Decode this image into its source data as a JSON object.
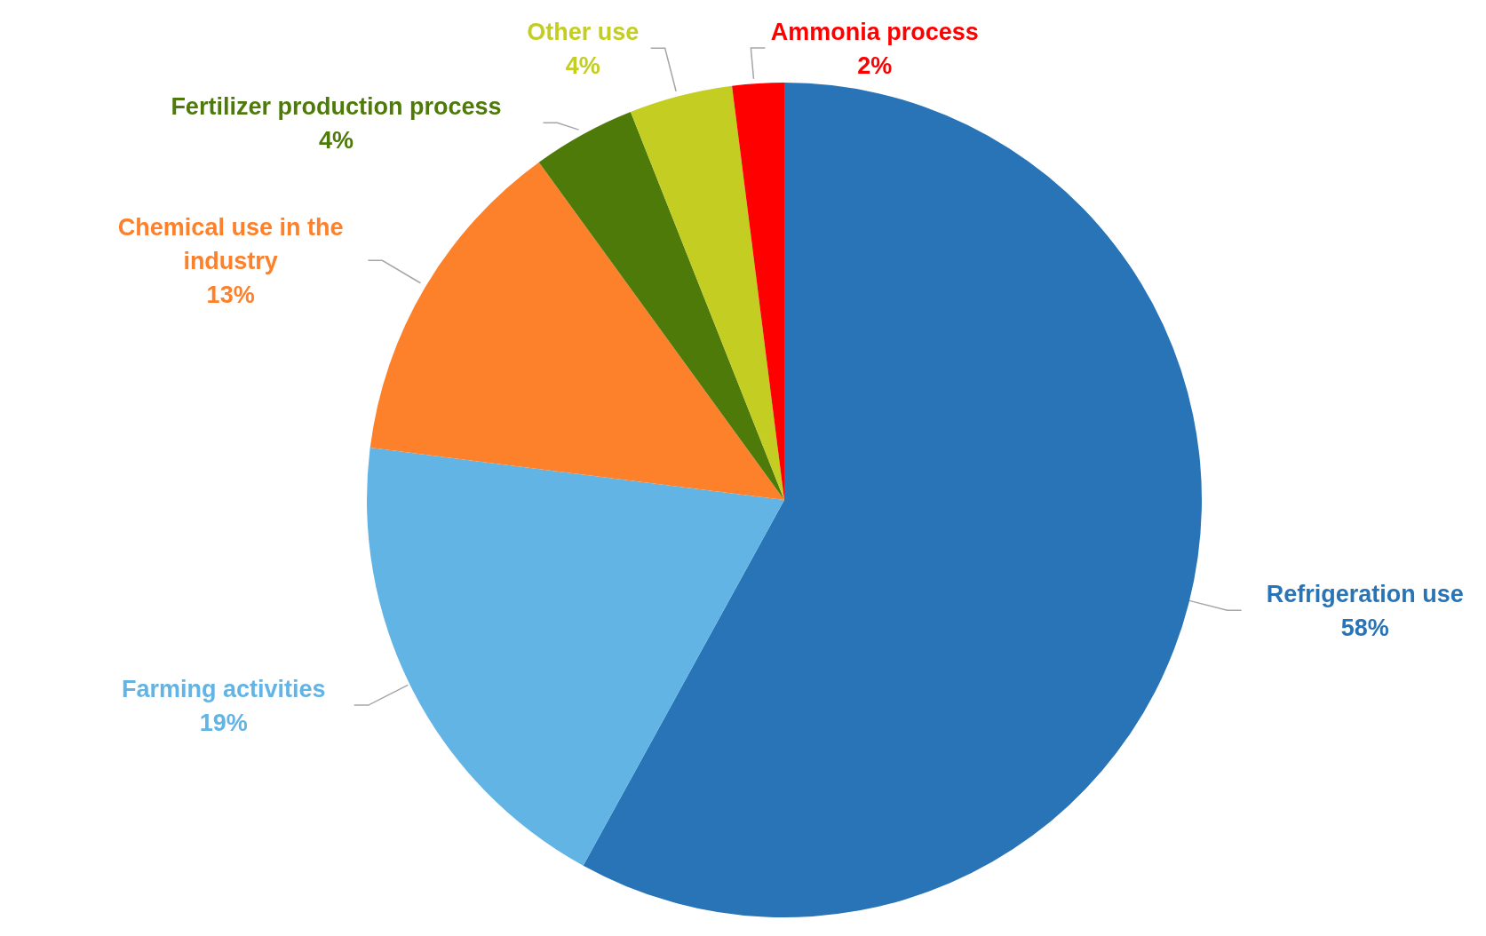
{
  "chart_data": {
    "type": "pie",
    "categories": [
      "Refrigeration use",
      "Farming activities",
      "Chemical use in the industry",
      "Fertilizer production process",
      "Other use",
      "Ammonia process"
    ],
    "values": [
      58,
      19,
      13,
      4,
      4,
      2
    ],
    "colors": [
      "#2874b6",
      "#62b4e4",
      "#fd812b",
      "#4e7a0a",
      "#c3cd22",
      "#ff0000"
    ],
    "value_labels": [
      "58%",
      "19%",
      "13%",
      "4%",
      "4%",
      "2%"
    ],
    "legend": false
  }
}
